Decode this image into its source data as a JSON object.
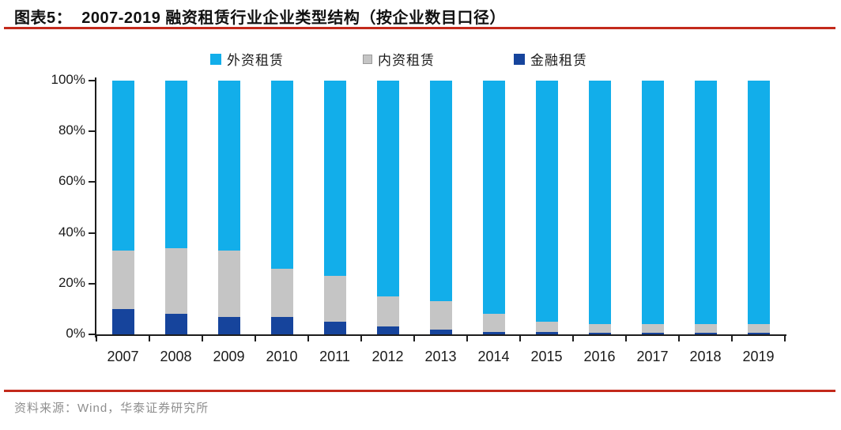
{
  "header": {
    "title": "图表5：  2007-2019 融资租赁行业企业类型结构（按企业数目口径）"
  },
  "footer": {
    "source": "资料来源：Wind，华泰证券研究所"
  },
  "colors": {
    "foreign": "#12AEEA",
    "domestic": "#C5C5C5",
    "financial": "#16449C",
    "domestic_marker_border": "#9A9A9A",
    "rule_red": "#C32A1C",
    "axis": "#1D1D1D",
    "source_text": "#8E8E8E",
    "title_text": "#111111"
  },
  "chart_data": {
    "type": "bar",
    "stacked": true,
    "title": "2007-2019 融资租赁行业企业类型结构（按企业数目口径）",
    "categories": [
      "2007",
      "2008",
      "2009",
      "2010",
      "2011",
      "2012",
      "2013",
      "2014",
      "2015",
      "2016",
      "2017",
      "2018",
      "2019"
    ],
    "series": [
      {
        "key": "foreign",
        "name": "外资租赁",
        "values": [
          67,
          66,
          67,
          74,
          77,
          85,
          87,
          92,
          95,
          96,
          96,
          96,
          96
        ]
      },
      {
        "key": "domestic",
        "name": "内资租赁",
        "values": [
          23,
          26,
          26,
          19,
          18,
          12,
          11,
          7,
          4,
          3.5,
          3.5,
          3.5,
          3.5
        ]
      },
      {
        "key": "financial",
        "name": "金融租赁",
        "values": [
          10,
          8,
          7,
          7,
          5,
          3,
          2,
          1,
          1,
          0.5,
          0.5,
          0.5,
          0.5
        ]
      }
    ],
    "stack_order_bottom_to_top": [
      "financial",
      "domestic",
      "foreign"
    ],
    "xlabel": "",
    "ylabel": "",
    "y_ticks": [
      "0%",
      "20%",
      "40%",
      "60%",
      "80%",
      "100%"
    ],
    "ylim": [
      0,
      100
    ],
    "grid": false,
    "legend_position": "top"
  }
}
